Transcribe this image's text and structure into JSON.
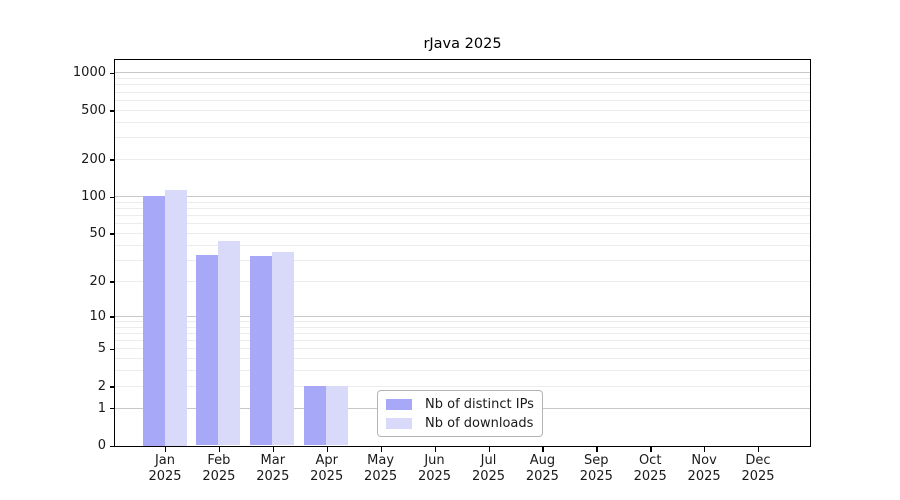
{
  "chart_data": {
    "type": "bar",
    "title": "rJava 2025",
    "categories": [
      "Jan",
      "Feb",
      "Mar",
      "Apr",
      "May",
      "Jun",
      "Jul",
      "Aug",
      "Sep",
      "Oct",
      "Nov",
      "Dec"
    ],
    "year": "2025",
    "series": [
      {
        "name": "Nb of distinct IPs",
        "color": "#a8a8f8",
        "values": [
          101,
          33,
          32,
          2,
          0,
          0,
          0,
          0,
          0,
          0,
          0,
          0
        ]
      },
      {
        "name": "Nb of downloads",
        "color": "#d9d9f9",
        "values": [
          112,
          43,
          35,
          2,
          0,
          0,
          0,
          0,
          0,
          0,
          0,
          0
        ]
      }
    ],
    "xlabel": "",
    "ylabel": "",
    "y_axis": {
      "scale": "log10(value+1)",
      "ticks": [
        0,
        1,
        2,
        5,
        10,
        20,
        50,
        100,
        200,
        500,
        1000
      ],
      "range": [
        0,
        1300
      ]
    },
    "grid": {
      "enabled": true,
      "major_color": "#c8c8c8",
      "minor_color": "#ececec"
    },
    "legend": {
      "position": "lower-center-inside",
      "entries": [
        "Nb of distinct IPs",
        "Nb of downloads"
      ]
    }
  }
}
